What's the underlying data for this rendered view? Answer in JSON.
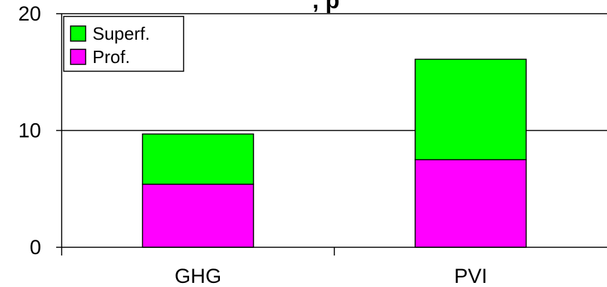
{
  "chart_data": {
    "type": "bar",
    "stacked": true,
    "title_fragment": ", p",
    "categories": [
      "GHG",
      "PVI"
    ],
    "series": [
      {
        "name": "Prof.",
        "values": [
          5.4,
          7.5
        ],
        "color": "#ff00ff"
      },
      {
        "name": "Superf.",
        "values": [
          4.3,
          8.6
        ],
        "color": "#00ff00"
      }
    ],
    "ylim": [
      0,
      20
    ],
    "yticks": [
      "0",
      "10",
      "20"
    ],
    "grid": true,
    "legend_position": "top-left",
    "legend_order": [
      "Superf.",
      "Prof."
    ]
  }
}
